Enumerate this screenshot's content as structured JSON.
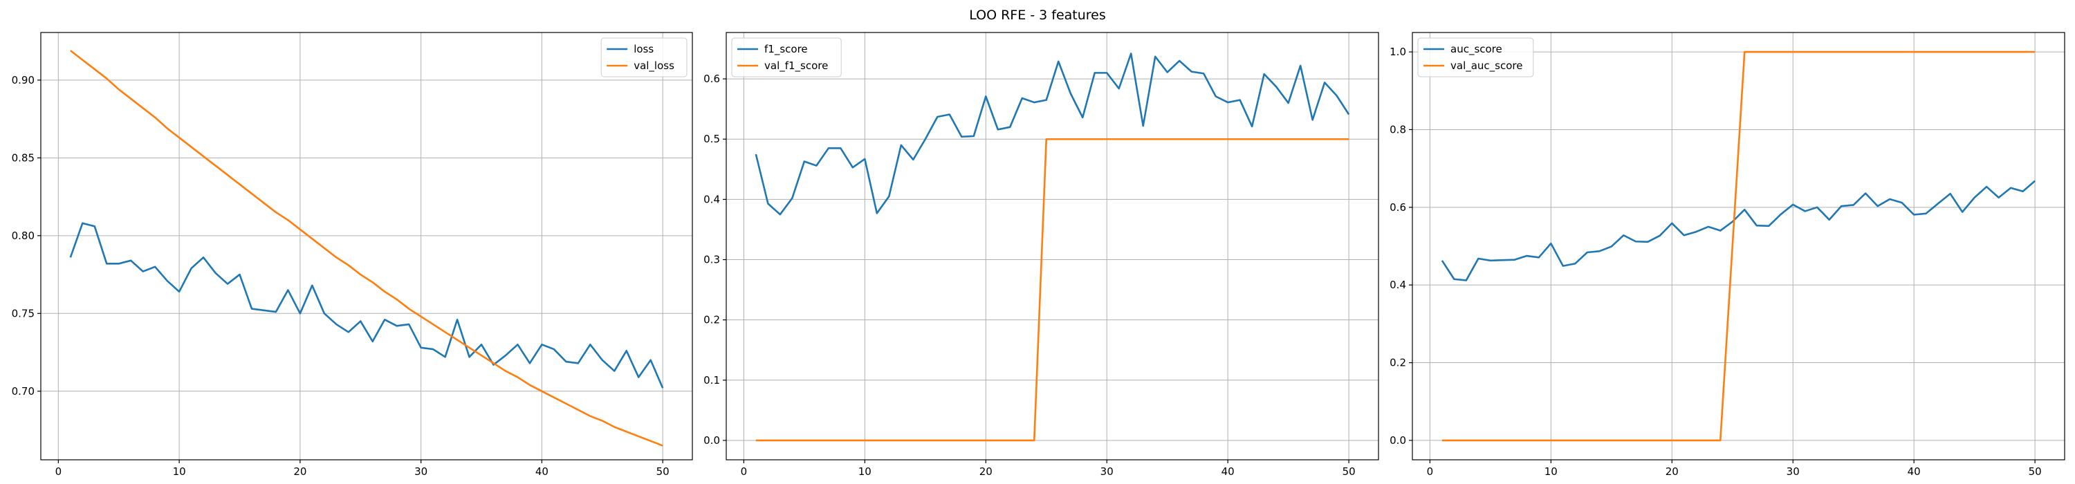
{
  "figure": {
    "suptitle": "LOO RFE - 3 features"
  },
  "chart_data": [
    {
      "type": "line",
      "title": "",
      "xlabel": "",
      "ylabel": "",
      "xlim": [
        -1.45,
        52.45
      ],
      "ylim": [
        0.6559,
        0.9306
      ],
      "xticks": [
        0,
        10,
        20,
        30,
        40,
        50
      ],
      "yticks": [
        0.7,
        0.75,
        0.8,
        0.85,
        0.9
      ],
      "ytick_format": 2,
      "grid": true,
      "legend_position": "top-right",
      "x": [
        1,
        2,
        3,
        4,
        5,
        6,
        7,
        8,
        9,
        10,
        11,
        12,
        13,
        14,
        15,
        16,
        17,
        18,
        19,
        20,
        21,
        22,
        23,
        24,
        25,
        26,
        27,
        28,
        29,
        30,
        31,
        32,
        33,
        34,
        35,
        36,
        37,
        38,
        39,
        40,
        41,
        42,
        43,
        44,
        45,
        46,
        47,
        48,
        49,
        50
      ],
      "series": [
        {
          "name": "loss",
          "color": "#1f77b4",
          "values": [
            0.786,
            0.808,
            0.806,
            0.782,
            0.782,
            0.784,
            0.777,
            0.78,
            0.771,
            0.764,
            0.779,
            0.786,
            0.776,
            0.769,
            0.775,
            0.753,
            0.752,
            0.751,
            0.765,
            0.75,
            0.768,
            0.75,
            0.743,
            0.738,
            0.745,
            0.732,
            0.746,
            0.742,
            0.743,
            0.728,
            0.727,
            0.722,
            0.746,
            0.722,
            0.73,
            0.717,
            0.723,
            0.73,
            0.718,
            0.73,
            0.727,
            0.719,
            0.718,
            0.73,
            0.72,
            0.713,
            0.726,
            0.709,
            0.72,
            0.702
          ]
        },
        {
          "name": "val_loss",
          "color": "#ff7f0e",
          "values": [
            0.919,
            0.913,
            0.907,
            0.901,
            0.894,
            0.888,
            0.882,
            0.876,
            0.869,
            0.863,
            0.857,
            0.851,
            0.845,
            0.839,
            0.833,
            0.827,
            0.821,
            0.815,
            0.81,
            0.804,
            0.798,
            0.792,
            0.786,
            0.781,
            0.775,
            0.77,
            0.764,
            0.759,
            0.753,
            0.748,
            0.743,
            0.738,
            0.733,
            0.728,
            0.723,
            0.718,
            0.713,
            0.709,
            0.704,
            0.7,
            0.696,
            0.692,
            0.688,
            0.684,
            0.681,
            0.677,
            0.674,
            0.671,
            0.668,
            0.665
          ]
        }
      ]
    },
    {
      "type": "line",
      "title": "",
      "xlabel": "",
      "ylabel": "",
      "xlim": [
        -1.45,
        52.45
      ],
      "ylim": [
        -0.0322,
        0.677
      ],
      "xticks": [
        0,
        10,
        20,
        30,
        40,
        50
      ],
      "yticks": [
        0.0,
        0.1,
        0.2,
        0.3,
        0.4,
        0.5,
        0.6
      ],
      "ytick_format": 1,
      "grid": true,
      "legend_position": "top-left",
      "x": [
        1,
        2,
        3,
        4,
        5,
        6,
        7,
        8,
        9,
        10,
        11,
        12,
        13,
        14,
        15,
        16,
        17,
        18,
        19,
        20,
        21,
        22,
        23,
        24,
        25,
        26,
        27,
        28,
        29,
        30,
        31,
        32,
        33,
        34,
        35,
        36,
        37,
        38,
        39,
        40,
        41,
        42,
        43,
        44,
        45,
        46,
        47,
        48,
        49,
        50
      ],
      "series": [
        {
          "name": "f1_score",
          "color": "#1f77b4",
          "values": [
            0.475,
            0.393,
            0.375,
            0.402,
            0.463,
            0.456,
            0.485,
            0.485,
            0.453,
            0.467,
            0.377,
            0.405,
            0.49,
            0.466,
            0.5,
            0.537,
            0.541,
            0.504,
            0.505,
            0.571,
            0.516,
            0.52,
            0.568,
            0.561,
            0.565,
            0.629,
            0.576,
            0.536,
            0.61,
            0.61,
            0.584,
            0.642,
            0.522,
            0.637,
            0.611,
            0.63,
            0.612,
            0.609,
            0.571,
            0.561,
            0.565,
            0.521,
            0.608,
            0.587,
            0.56,
            0.622,
            0.532,
            0.594,
            0.572,
            0.541
          ]
        },
        {
          "name": "val_f1_score",
          "color": "#ff7f0e",
          "values": [
            0,
            0,
            0,
            0,
            0,
            0,
            0,
            0,
            0,
            0,
            0,
            0,
            0,
            0,
            0,
            0,
            0,
            0,
            0,
            0,
            0,
            0,
            0,
            0,
            0.5,
            0.5,
            0.5,
            0.5,
            0.5,
            0.5,
            0.5,
            0.5,
            0.5,
            0.5,
            0.5,
            0.5,
            0.5,
            0.5,
            0.5,
            0.5,
            0.5,
            0.5,
            0.5,
            0.5,
            0.5,
            0.5,
            0.5,
            0.5,
            0.5,
            0.5
          ]
        }
      ]
    },
    {
      "type": "line",
      "title": "",
      "xlabel": "",
      "ylabel": "",
      "xlim": [
        -1.45,
        52.45
      ],
      "ylim": [
        -0.05,
        1.05
      ],
      "xticks": [
        0,
        10,
        20,
        30,
        40,
        50
      ],
      "yticks": [
        0.0,
        0.2,
        0.4,
        0.6,
        0.8,
        1.0
      ],
      "ytick_format": 1,
      "grid": true,
      "legend_position": "top-left",
      "x": [
        1,
        2,
        3,
        4,
        5,
        6,
        7,
        8,
        9,
        10,
        11,
        12,
        13,
        14,
        15,
        16,
        17,
        18,
        19,
        20,
        21,
        22,
        23,
        24,
        25,
        26,
        27,
        28,
        29,
        30,
        31,
        32,
        33,
        34,
        35,
        36,
        37,
        38,
        39,
        40,
        41,
        42,
        43,
        44,
        45,
        46,
        47,
        48,
        49,
        50
      ],
      "series": [
        {
          "name": "auc_score",
          "color": "#1f77b4",
          "values": [
            0.463,
            0.415,
            0.412,
            0.468,
            0.463,
            0.464,
            0.465,
            0.475,
            0.471,
            0.507,
            0.449,
            0.455,
            0.484,
            0.487,
            0.499,
            0.528,
            0.512,
            0.511,
            0.527,
            0.559,
            0.528,
            0.537,
            0.55,
            0.54,
            0.563,
            0.594,
            0.553,
            0.552,
            0.582,
            0.607,
            0.59,
            0.6,
            0.568,
            0.603,
            0.606,
            0.636,
            0.603,
            0.621,
            0.612,
            0.581,
            0.584,
            0.61,
            0.635,
            0.588,
            0.625,
            0.653,
            0.625,
            0.65,
            0.641,
            0.668
          ]
        },
        {
          "name": "val_auc_score",
          "color": "#ff7f0e",
          "values": [
            0,
            0,
            0,
            0,
            0,
            0,
            0,
            0,
            0,
            0,
            0,
            0,
            0,
            0,
            0,
            0,
            0,
            0,
            0,
            0,
            0,
            0,
            0,
            0,
            0.5,
            1,
            1,
            1,
            1,
            1,
            1,
            1,
            1,
            1,
            1,
            1,
            1,
            1,
            1,
            1,
            1,
            1,
            1,
            1,
            1,
            1,
            1,
            1,
            1,
            1
          ]
        }
      ]
    }
  ]
}
